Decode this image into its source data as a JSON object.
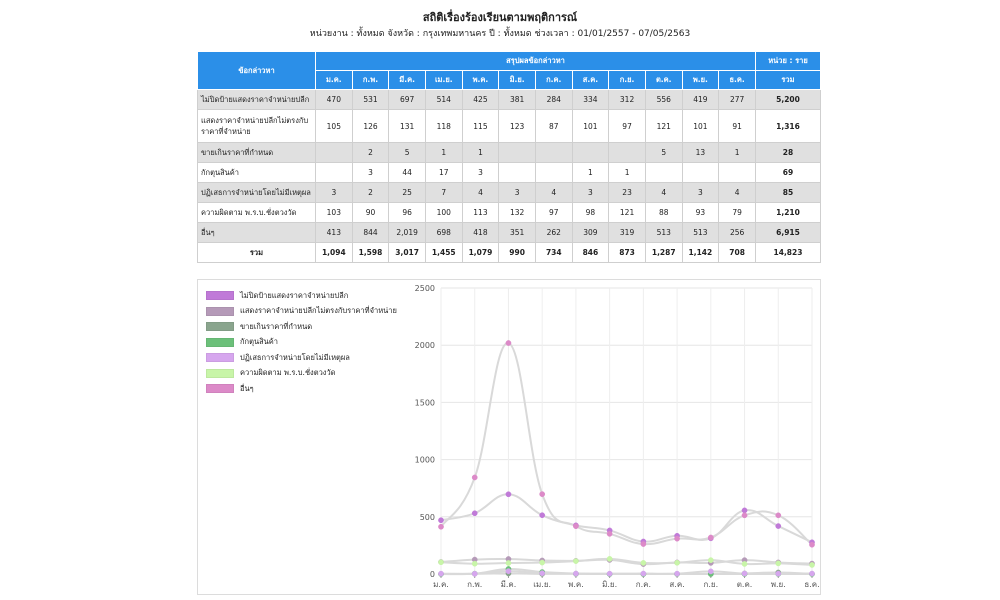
{
  "page": {
    "title": "สถิติเรื่องร้องเรียนตามพฤติการณ์",
    "subtitle": "หน่วยงาน : ทั้งหมด จังหวัด : กรุงเทพมหานคร ปี : ทั้งหมด ช่วงเวลา : 01/01/2557 - 07/05/2563"
  },
  "table": {
    "topic_header": "ข้อกล่าวหา",
    "summary_header": "สรุปผลข้อกล่าวหา",
    "unit_header": "หน่วย : ราย",
    "total_header": "รวม",
    "months": [
      "ม.ค.",
      "ก.พ.",
      "มี.ค.",
      "เม.ย.",
      "พ.ค.",
      "มิ.ย.",
      "ก.ค.",
      "ส.ค.",
      "ก.ย.",
      "ต.ค.",
      "พ.ย.",
      "ธ.ค."
    ],
    "rows": [
      {
        "name": "ไม่ปิดป้ายแสดงราคาจำหน่ายปลีก",
        "values": [
          "470",
          "531",
          "697",
          "514",
          "425",
          "381",
          "284",
          "334",
          "312",
          "556",
          "419",
          "277"
        ],
        "total": "5,200"
      },
      {
        "name": "แสดงราคาจำหน่ายปลีกไม่ตรงกับราคาที่จำหน่าย",
        "values": [
          "105",
          "126",
          "131",
          "118",
          "115",
          "123",
          "87",
          "101",
          "97",
          "121",
          "101",
          "91"
        ],
        "total": "1,316"
      },
      {
        "name": "ขายเกินราคาที่กำหนด",
        "values": [
          "",
          "2",
          "5",
          "1",
          "1",
          "",
          "",
          "",
          "",
          "5",
          "13",
          "1"
        ],
        "total": "28"
      },
      {
        "name": "กักตุนสินค้า",
        "values": [
          "",
          "3",
          "44",
          "17",
          "3",
          "",
          "",
          "1",
          "1",
          "",
          "",
          ""
        ],
        "total": "69"
      },
      {
        "name": "ปฏิเสธการจำหน่ายโดยไม่มีเหตุผล",
        "values": [
          "3",
          "2",
          "25",
          "7",
          "4",
          "3",
          "4",
          "3",
          "23",
          "4",
          "3",
          "4"
        ],
        "total": "85"
      },
      {
        "name": "ความผิดตาม พ.ร.บ.ชั่งตวงวัด",
        "values": [
          "103",
          "90",
          "96",
          "100",
          "113",
          "132",
          "97",
          "98",
          "121",
          "88",
          "93",
          "79"
        ],
        "total": "1,210"
      },
      {
        "name": "อื่นๆ",
        "values": [
          "413",
          "844",
          "2,019",
          "698",
          "418",
          "351",
          "262",
          "309",
          "319",
          "513",
          "513",
          "256"
        ],
        "total": "6,915"
      }
    ],
    "sum_row": {
      "name": "รวม",
      "values": [
        "1,094",
        "1,598",
        "3,017",
        "1,455",
        "1,079",
        "990",
        "734",
        "846",
        "873",
        "1,287",
        "1,142",
        "708"
      ],
      "total": "14,823"
    }
  },
  "chart_data": {
    "type": "line",
    "categories": [
      "ม.ค.",
      "ก.พ.",
      "มี.ค.",
      "เม.ย.",
      "พ.ค.",
      "มิ.ย.",
      "ก.ค.",
      "ส.ค.",
      "ก.ย.",
      "ต.ค.",
      "พ.ย.",
      "ธ.ค."
    ],
    "ylim": [
      0,
      2500
    ],
    "yticks": [
      0,
      500,
      1000,
      1500,
      2000,
      2500
    ],
    "grid": true,
    "legend_position": "top-left",
    "series": [
      {
        "name": "ไม่ปิดป้ายแสดงราคาจำหน่ายปลีก",
        "color": "#c07ad8",
        "values": [
          470,
          531,
          697,
          514,
          425,
          381,
          284,
          334,
          312,
          556,
          419,
          277
        ]
      },
      {
        "name": "แสดงราคาจำหน่ายปลีกไม่ตรงกับราคาที่จำหน่าย",
        "color": "#b59ab8",
        "values": [
          105,
          126,
          131,
          118,
          115,
          123,
          87,
          101,
          97,
          121,
          101,
          91
        ]
      },
      {
        "name": "ขายเกินราคาที่กำหนด",
        "color": "#8aa58e",
        "values": [
          0,
          2,
          5,
          1,
          1,
          0,
          0,
          0,
          0,
          5,
          13,
          1
        ]
      },
      {
        "name": "กักตุนสินค้า",
        "color": "#6cc07a",
        "values": [
          0,
          3,
          44,
          17,
          3,
          0,
          0,
          1,
          1,
          0,
          0,
          0
        ]
      },
      {
        "name": "ปฏิเสธการจำหน่ายโดยไม่มีเหตุผล",
        "color": "#d6a6ee",
        "values": [
          3,
          2,
          25,
          7,
          4,
          3,
          4,
          3,
          23,
          4,
          3,
          4
        ]
      },
      {
        "name": "ความผิดตาม พ.ร.บ.ชั่งตวงวัด",
        "color": "#c8f5a8",
        "values": [
          103,
          90,
          96,
          100,
          113,
          132,
          97,
          98,
          121,
          88,
          93,
          79
        ]
      },
      {
        "name": "อื่นๆ",
        "color": "#dc8ac8",
        "values": [
          413,
          844,
          2019,
          698,
          418,
          351,
          262,
          309,
          319,
          513,
          513,
          256
        ]
      }
    ]
  }
}
